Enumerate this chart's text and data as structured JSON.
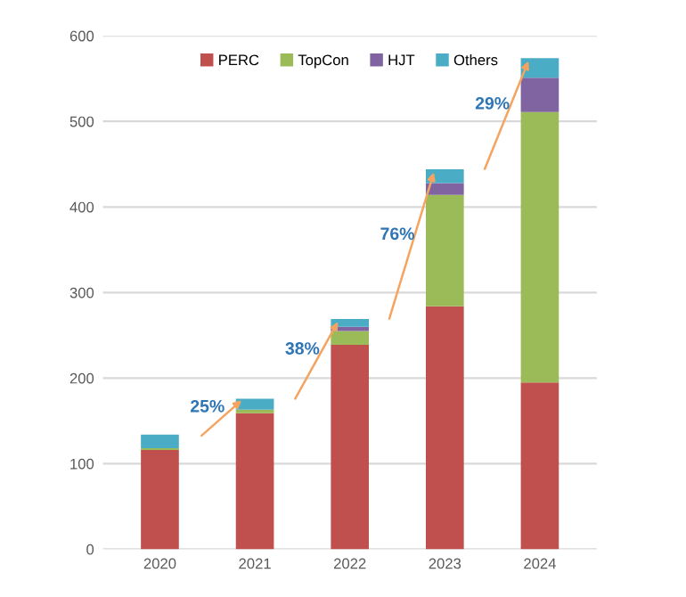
{
  "chart_data": {
    "type": "bar",
    "stacked": true,
    "categories": [
      "2020",
      "2021",
      "2022",
      "2023",
      "2024"
    ],
    "series": [
      {
        "name": "PERC",
        "color": "#c0504d",
        "values": [
          116,
          159,
          239,
          284,
          195
        ]
      },
      {
        "name": "TopCon",
        "color": "#9bbb59",
        "values": [
          2,
          4,
          16,
          130,
          316
        ]
      },
      {
        "name": "HJT",
        "color": "#8064a2",
        "values": [
          0,
          0,
          5,
          14,
          40
        ]
      },
      {
        "name": "Others",
        "color": "#4bacc6",
        "values": [
          16,
          13,
          9,
          16,
          23
        ]
      }
    ],
    "ylim": [
      0,
      600
    ],
    "yticks": [
      0,
      100,
      200,
      300,
      400,
      500,
      600
    ],
    "grid": "y",
    "legend": "top",
    "annotations": [
      "25%",
      "38%",
      "76%",
      "29%"
    ]
  }
}
